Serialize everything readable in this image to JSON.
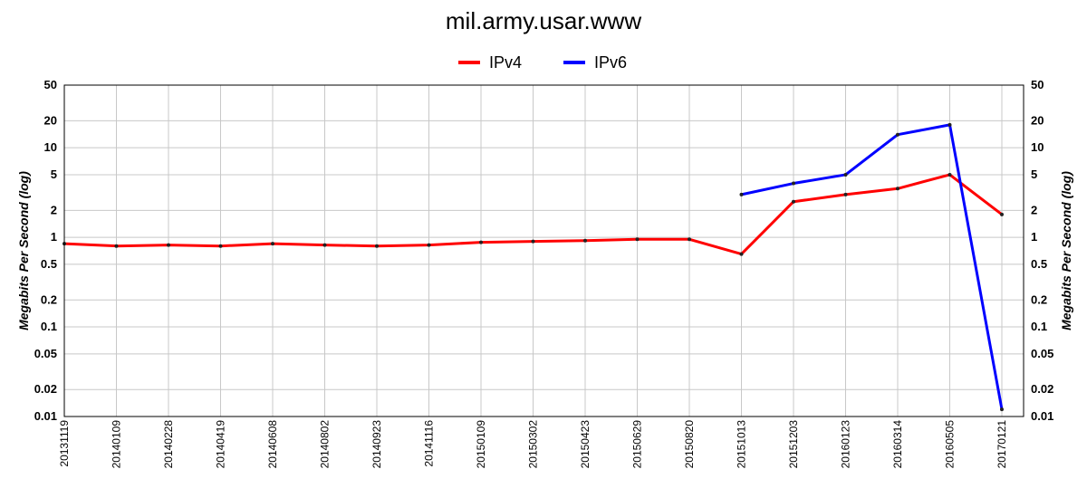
{
  "chart_data": {
    "type": "line",
    "title": "mil.army.usar.www",
    "ylabel": "Megabits Per Second (log)",
    "yscale": "log",
    "ylim": [
      0.01,
      50
    ],
    "yticks": [
      50,
      20,
      10,
      5,
      2,
      1,
      0.5,
      0.2,
      0.1,
      0.05,
      0.02,
      0.01
    ],
    "ytick_labels": [
      "50",
      "20",
      "10",
      "5",
      "2",
      "1",
      "0.5",
      "0.2",
      "0.1",
      "0.05",
      "0.02",
      "0.01"
    ],
    "x_tick_labels": [
      "20131119",
      "20140109",
      "20140228",
      "20140419",
      "20140608",
      "20140802",
      "20140923",
      "20141116",
      "20150109",
      "20150302",
      "20150423",
      "20150629",
      "20150820",
      "20151013",
      "20151203",
      "20160123",
      "20160314",
      "20160505",
      "20170121"
    ],
    "grid": true,
    "legend_position": "top-center",
    "series": [
      {
        "name": "IPv4",
        "color": "#ff0000",
        "x_index": [
          0,
          1,
          2,
          3,
          4,
          5,
          6,
          7,
          8,
          9,
          10,
          11,
          12,
          13,
          14,
          15,
          16,
          17,
          18
        ],
        "values": [
          0.85,
          0.8,
          0.82,
          0.8,
          0.85,
          0.82,
          0.8,
          0.82,
          0.88,
          0.9,
          0.92,
          0.95,
          0.95,
          0.65,
          2.5,
          3,
          3.5,
          5,
          1.8
        ]
      },
      {
        "name": "IPv6",
        "color": "#0000ff",
        "x_index": [
          13,
          14,
          15,
          16,
          17,
          18
        ],
        "values": [
          3,
          4,
          5,
          14,
          18,
          0.012
        ]
      }
    ]
  }
}
